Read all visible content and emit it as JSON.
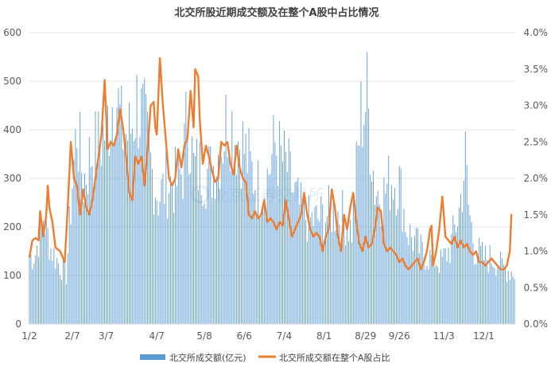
{
  "chart_data": {
    "type": "bar+line",
    "title": "北交所股近期成交额及在整个A股中占比情况",
    "categories": [
      "1/2",
      "2/7",
      "3/7",
      "4/7",
      "5/8",
      "6/6",
      "7/4",
      "8/1",
      "8/29",
      "9/26",
      "11/3",
      "12/1"
    ],
    "left_axis": {
      "ticks": [
        "0",
        "100",
        "200",
        "300",
        "400",
        "500",
        "600"
      ],
      "ylim": [
        0,
        600
      ]
    },
    "right_axis": {
      "ticks": [
        "0.0%",
        "0.5%",
        "1.0%",
        "1.5%",
        "2.0%",
        "2.5%",
        "3.0%",
        "3.5%",
        "4.0%"
      ],
      "ylim": [
        0,
        4.0
      ],
      "unit": "%"
    },
    "legend": {
      "placement": "bottom"
    },
    "grid": "horizontal",
    "series": [
      {
        "name": "北交所成交额(亿元)",
        "kind": "bar",
        "color": "#5B9BD5",
        "anchors": [
          [
            0,
            140
          ],
          [
            4,
            150
          ],
          [
            9,
            230
          ],
          [
            14,
            160
          ],
          [
            19,
            130
          ],
          [
            24,
            105
          ],
          [
            28,
            300
          ],
          [
            31,
            420
          ],
          [
            35,
            300
          ],
          [
            40,
            360
          ],
          [
            46,
            380
          ],
          [
            52,
            440
          ],
          [
            56,
            505
          ],
          [
            60,
            410
          ],
          [
            65,
            400
          ],
          [
            70,
            470
          ],
          [
            75,
            420
          ],
          [
            80,
            320
          ],
          [
            84,
            270
          ],
          [
            90,
            300
          ],
          [
            96,
            300
          ],
          [
            100,
            330
          ],
          [
            103,
            450
          ],
          [
            107,
            330
          ],
          [
            112,
            330
          ],
          [
            118,
            320
          ],
          [
            124,
            370
          ],
          [
            130,
            450
          ],
          [
            134,
            400
          ],
          [
            139,
            380
          ],
          [
            144,
            330
          ],
          [
            149,
            290
          ],
          [
            154,
            300
          ],
          [
            160,
            380
          ],
          [
            164,
            350
          ],
          [
            168,
            330
          ],
          [
            172,
            280
          ],
          [
            177,
            240
          ],
          [
            182,
            220
          ],
          [
            187,
            220
          ],
          [
            192,
            230
          ],
          [
            198,
            240
          ],
          [
            204,
            230
          ],
          [
            210,
            200
          ],
          [
            216,
            440
          ],
          [
            220,
            480
          ],
          [
            225,
            290
          ],
          [
            230,
            270
          ],
          [
            236,
            310
          ],
          [
            241,
            300
          ],
          [
            246,
            200
          ],
          [
            252,
            170
          ],
          [
            256,
            150
          ],
          [
            262,
            140
          ],
          [
            268,
            130
          ],
          [
            274,
            160
          ],
          [
            280,
            240
          ],
          [
            284,
            350
          ],
          [
            286,
            250
          ],
          [
            290,
            160
          ],
          [
            296,
            140
          ],
          [
            302,
            140
          ],
          [
            308,
            120
          ],
          [
            316,
            110
          ]
        ]
      },
      {
        "name": "北交所成交额在整个A股占比",
        "kind": "line",
        "color": "#ED7D31",
        "values": [
          [
            0,
            0.92
          ],
          [
            2,
            1.15
          ],
          [
            4,
            1.18
          ],
          [
            6,
            1.15
          ],
          [
            7,
            1.55
          ],
          [
            9,
            1.2
          ],
          [
            11,
            1.5
          ],
          [
            12,
            1.9
          ],
          [
            13,
            1.6
          ],
          [
            15,
            1.4
          ],
          [
            17,
            1.05
          ],
          [
            20,
            1.0
          ],
          [
            23,
            0.85
          ],
          [
            25,
            1.6
          ],
          [
            27,
            2.5
          ],
          [
            29,
            2.0
          ],
          [
            31,
            1.9
          ],
          [
            33,
            1.5
          ],
          [
            35,
            1.85
          ],
          [
            37,
            1.6
          ],
          [
            39,
            1.5
          ],
          [
            41,
            1.7
          ],
          [
            43,
            2.0
          ],
          [
            45,
            2.3
          ],
          [
            47,
            2.6
          ],
          [
            49,
            3.35
          ],
          [
            51,
            2.4
          ],
          [
            53,
            2.5
          ],
          [
            55,
            2.45
          ],
          [
            57,
            2.6
          ],
          [
            59,
            2.95
          ],
          [
            61,
            2.7
          ],
          [
            63,
            2.3
          ],
          [
            65,
            1.8
          ],
          [
            67,
            1.7
          ],
          [
            69,
            2.3
          ],
          [
            71,
            2.2
          ],
          [
            73,
            2.3
          ],
          [
            75,
            1.9
          ],
          [
            77,
            2.4
          ],
          [
            79,
            3.0
          ],
          [
            81,
            3.05
          ],
          [
            82,
            2.7
          ],
          [
            83,
            2.6
          ],
          [
            85,
            3.65
          ],
          [
            87,
            3.0
          ],
          [
            89,
            2.5
          ],
          [
            91,
            2.0
          ],
          [
            93,
            1.9
          ],
          [
            95,
            2.0
          ],
          [
            97,
            2.4
          ],
          [
            99,
            2.15
          ],
          [
            101,
            2.45
          ],
          [
            103,
            2.55
          ],
          [
            105,
            3.2
          ],
          [
            107,
            2.7
          ],
          [
            108,
            3.5
          ],
          [
            110,
            3.4
          ],
          [
            111,
            2.8
          ],
          [
            113,
            2.2
          ],
          [
            115,
            2.45
          ],
          [
            117,
            2.3
          ],
          [
            119,
            2.1
          ],
          [
            121,
            1.95
          ],
          [
            123,
            2.0
          ],
          [
            125,
            2.5
          ],
          [
            127,
            2.45
          ],
          [
            129,
            2.5
          ],
          [
            131,
            2.2
          ],
          [
            133,
            2.05
          ],
          [
            135,
            2.45
          ],
          [
            137,
            2.15
          ],
          [
            139,
            2.0
          ],
          [
            141,
            1.95
          ],
          [
            143,
            1.5
          ],
          [
            145,
            1.45
          ],
          [
            147,
            1.55
          ],
          [
            149,
            1.45
          ],
          [
            151,
            1.5
          ],
          [
            153,
            1.7
          ],
          [
            155,
            1.4
          ],
          [
            157,
            1.45
          ],
          [
            159,
            1.4
          ],
          [
            161,
            1.3
          ],
          [
            163,
            1.4
          ],
          [
            165,
            1.35
          ],
          [
            167,
            1.7
          ],
          [
            169,
            1.45
          ],
          [
            171,
            1.2
          ],
          [
            173,
            1.3
          ],
          [
            175,
            1.4
          ],
          [
            177,
            1.5
          ],
          [
            179,
            1.8
          ],
          [
            181,
            1.5
          ],
          [
            183,
            1.3
          ],
          [
            185,
            1.2
          ],
          [
            187,
            1.25
          ],
          [
            189,
            1.2
          ],
          [
            191,
            1.0
          ],
          [
            193,
            1.2
          ],
          [
            195,
            1.3
          ],
          [
            197,
            1.85
          ],
          [
            199,
            1.6
          ],
          [
            201,
            1.2
          ],
          [
            203,
            1.0
          ],
          [
            205,
            1.5
          ],
          [
            207,
            1.3
          ],
          [
            209,
            1.6
          ],
          [
            211,
            1.8
          ],
          [
            213,
            1.4
          ],
          [
            215,
            1.1
          ],
          [
            217,
            1.0
          ],
          [
            219,
            1.2
          ],
          [
            221,
            1.05
          ],
          [
            223,
            1.1
          ],
          [
            225,
            1.3
          ],
          [
            227,
            1.6
          ],
          [
            229,
            1.55
          ],
          [
            231,
            1.1
          ],
          [
            233,
            1.0
          ],
          [
            235,
            1.05
          ],
          [
            237,
            1.0
          ],
          [
            239,
            0.95
          ],
          [
            241,
            0.85
          ],
          [
            243,
            0.9
          ],
          [
            245,
            0.8
          ],
          [
            247,
            0.75
          ],
          [
            249,
            0.8
          ],
          [
            251,
            0.85
          ],
          [
            253,
            0.9
          ],
          [
            255,
            0.75
          ],
          [
            257,
            0.85
          ],
          [
            259,
            1.0
          ],
          [
            261,
            1.3
          ],
          [
            262,
            1.35
          ],
          [
            263,
            0.8
          ],
          [
            265,
            1.0
          ],
          [
            267,
            1.3
          ],
          [
            269,
            1.75
          ],
          [
            270,
            1.5
          ],
          [
            271,
            1.2
          ],
          [
            273,
            1.15
          ],
          [
            275,
            1.1
          ],
          [
            277,
            1.2
          ],
          [
            279,
            1.05
          ],
          [
            281,
            1.15
          ],
          [
            283,
            1.05
          ],
          [
            285,
            1.1
          ],
          [
            287,
            1.0
          ],
          [
            289,
            0.95
          ],
          [
            291,
            1.0
          ],
          [
            293,
            0.85
          ],
          [
            295,
            0.85
          ],
          [
            297,
            0.8
          ],
          [
            299,
            0.85
          ],
          [
            301,
            0.9
          ],
          [
            303,
            0.85
          ],
          [
            305,
            0.8
          ],
          [
            307,
            0.75
          ],
          [
            309,
            0.75
          ],
          [
            311,
            0.8
          ],
          [
            313,
            1.0
          ],
          [
            314,
            1.5
          ]
        ]
      }
    ],
    "watermark": "北京证券交易所"
  }
}
